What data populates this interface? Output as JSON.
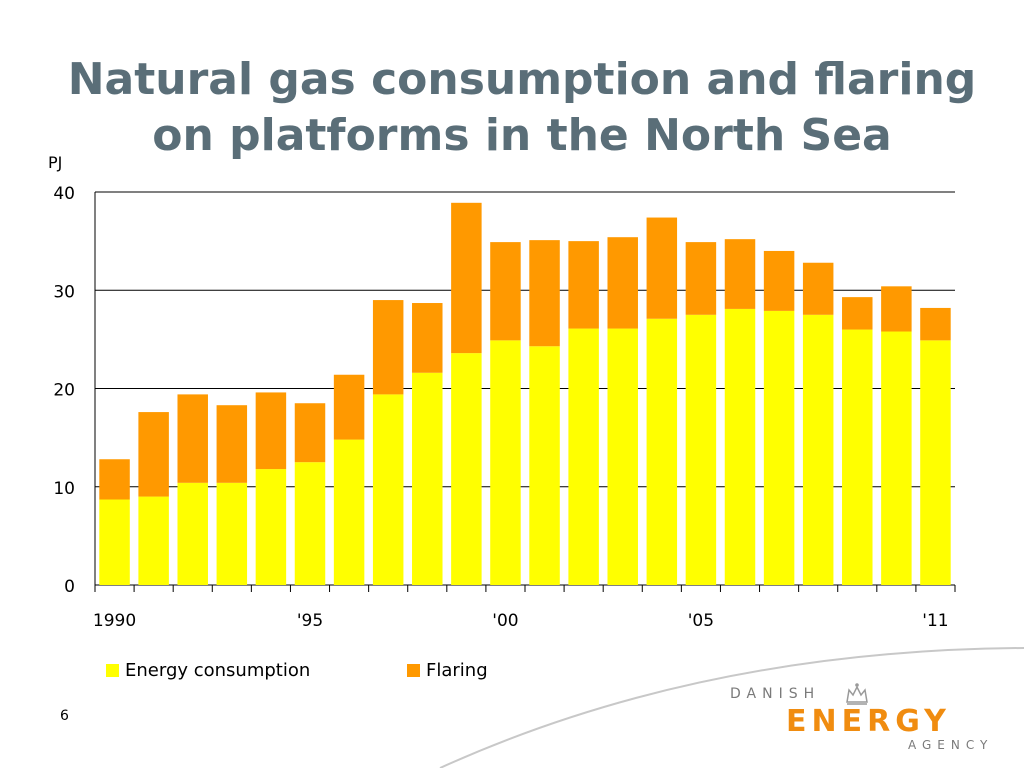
{
  "slide": {
    "title_line1": "Natural gas consumption and flaring",
    "title_line2": "on platforms in the North Sea",
    "page_number": "6"
  },
  "logo": {
    "line1": "DANISH",
    "line2": "ENERGY",
    "line3": "AGENCY",
    "icon": "crown-icon",
    "accent_color": "#f08c10"
  },
  "chart_data": {
    "type": "bar",
    "stacked": true,
    "ylabel": "PJ",
    "ylim": [
      0,
      40
    ],
    "yticks": [
      0,
      10,
      20,
      30,
      40
    ],
    "grid": true,
    "categories": [
      "1990",
      "1991",
      "1992",
      "1993",
      "1994",
      "1995",
      "1996",
      "1997",
      "1998",
      "1999",
      "2000",
      "2001",
      "2002",
      "2003",
      "2004",
      "2005",
      "2006",
      "2007",
      "2008",
      "2009",
      "2010",
      "2011"
    ],
    "xtick_labels": [
      {
        "category": "1990",
        "label": "1990"
      },
      {
        "category": "1995",
        "label": "'95"
      },
      {
        "category": "2000",
        "label": "'00"
      },
      {
        "category": "2005",
        "label": "'05"
      },
      {
        "category": "2011",
        "label": "'11"
      }
    ],
    "legend_position": "bottom-left",
    "series": [
      {
        "name": "Energy consumption",
        "color": "#ffff00",
        "values": [
          8.7,
          9.0,
          10.4,
          10.4,
          11.8,
          12.5,
          14.8,
          19.4,
          21.6,
          23.6,
          24.9,
          24.3,
          26.1,
          26.1,
          27.1,
          27.5,
          28.1,
          27.9,
          27.5,
          26.0,
          25.8,
          24.9
        ]
      },
      {
        "name": "Flaring",
        "color": "#ff9900",
        "values": [
          4.1,
          8.6,
          9.0,
          7.9,
          7.8,
          6.0,
          6.6,
          9.6,
          7.1,
          15.3,
          10.0,
          10.8,
          8.9,
          9.3,
          10.3,
          7.4,
          7.1,
          6.1,
          5.3,
          3.3,
          4.6,
          3.3
        ]
      }
    ]
  }
}
